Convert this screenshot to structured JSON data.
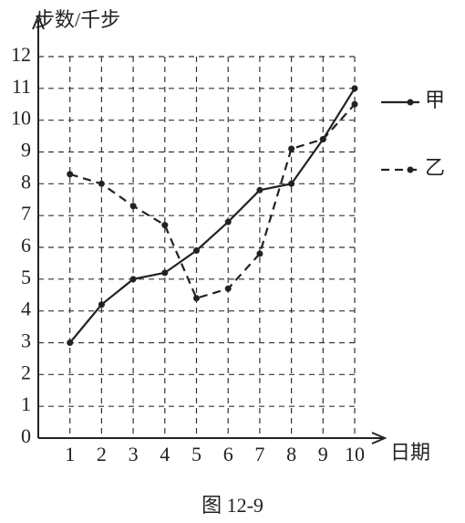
{
  "chart_data": {
    "type": "line",
    "caption": "图 12-9",
    "y_label": "步数/千步",
    "x_label": "日期",
    "x": [
      1,
      2,
      3,
      4,
      5,
      6,
      7,
      8,
      9,
      10
    ],
    "series": [
      {
        "name": "甲",
        "color": "#222222",
        "linestyle": "solid",
        "values": [
          3,
          4.2,
          5,
          5.2,
          5.9,
          6.8,
          7.8,
          8,
          9.4,
          11
        ]
      },
      {
        "name": "乙",
        "color": "#222222",
        "linestyle": "dashed",
        "values": [
          8.3,
          8,
          7.3,
          6.7,
          4.4,
          4.7,
          5.8,
          9.1,
          9.4,
          10.5
        ]
      }
    ],
    "xlim": [
      0,
      10
    ],
    "ylim": [
      0,
      12
    ],
    "xticks": [
      1,
      2,
      3,
      4,
      5,
      6,
      7,
      8,
      9,
      10
    ],
    "yticks": [
      0,
      1,
      2,
      3,
      4,
      5,
      6,
      7,
      8,
      9,
      10,
      11,
      12
    ],
    "grid": true,
    "legend": "right"
  }
}
